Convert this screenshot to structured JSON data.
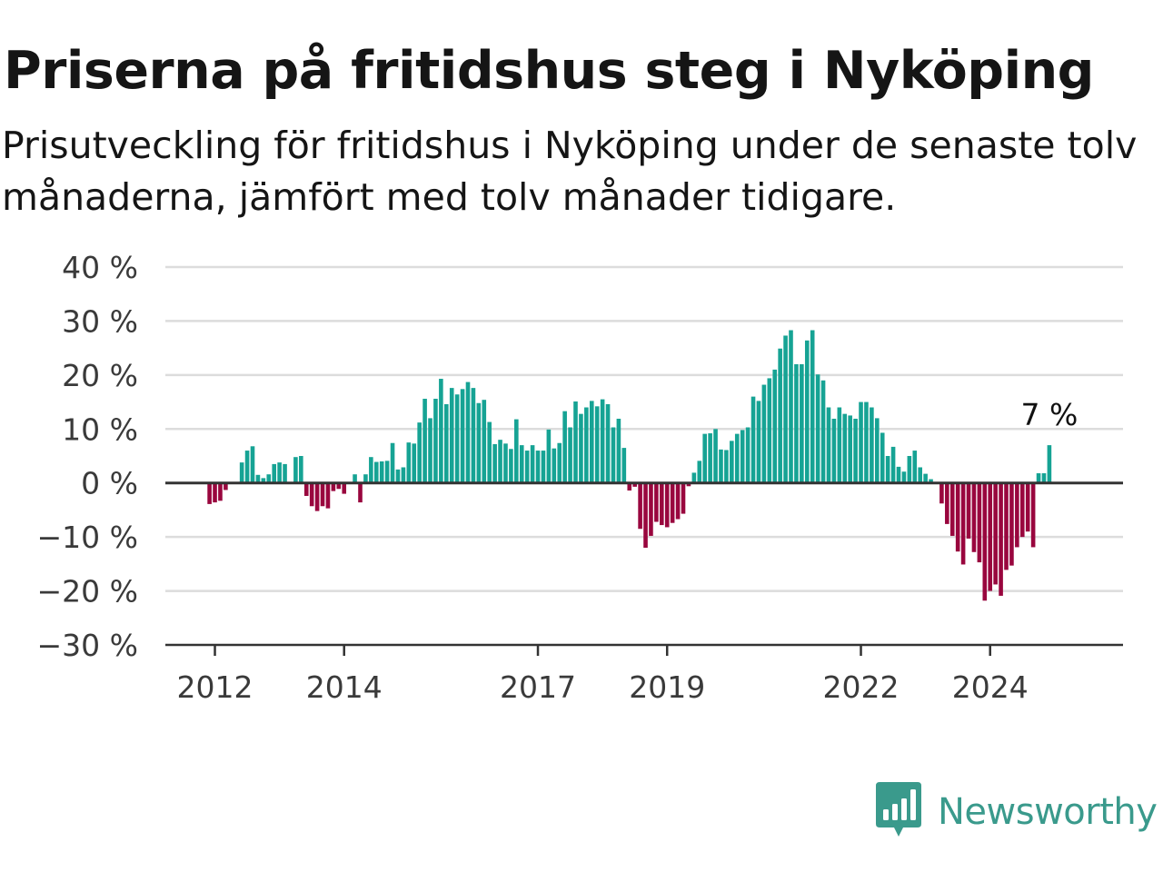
{
  "header": {
    "title": "Priserna på fritidshus steg i Nyköping",
    "subtitle": "Prisutveckling för fritidshus i Nyköping under de senaste tolv månaderna, jämfört med tolv månader tidigare."
  },
  "brand": {
    "name": "Newsworthy",
    "icon": "newsworthy-logo-icon",
    "color": "#3a9a8c"
  },
  "chart_data": {
    "type": "bar",
    "title": "Priserna på fritidshus steg i Nyköping",
    "subtitle": "Prisutveckling för fritidshus i Nyköping under de senaste tolv månaderna, jämfört med tolv månader tidigare.",
    "xlabel": "",
    "ylabel": "",
    "ylim": [
      -30,
      40
    ],
    "yticks": [
      40,
      30,
      20,
      10,
      0,
      -10,
      -20,
      -30
    ],
    "ytick_labels": [
      "40 %",
      "30 %",
      "20 %",
      "10 %",
      "0 %",
      "−10 %",
      "−20 %",
      "−30 %"
    ],
    "xticks": [
      "2012",
      "2014",
      "2017",
      "2019",
      "2022",
      "2024"
    ],
    "start_month": "2011-12",
    "grid": true,
    "positive_color": "#16a394",
    "negative_color": "#99063e",
    "annotation": {
      "text": "7 %",
      "value": 7
    },
    "values": [
      -3.9,
      -3.6,
      -3.3,
      -1.3,
      0,
      0,
      3.8,
      6.0,
      6.8,
      1.5,
      0.9,
      1.6,
      3.5,
      3.8,
      3.5,
      0,
      4.8,
      5.0,
      -2.4,
      -4.3,
      -5.2,
      -4.3,
      -4.7,
      -1.5,
      -1.1,
      -2.0,
      0,
      1.6,
      -3.6,
      1.6,
      4.8,
      3.9,
      4.0,
      4.1,
      7.4,
      2.5,
      2.9,
      7.5,
      7.3,
      11.2,
      15.6,
      12.0,
      15.6,
      19.3,
      14.6,
      17.6,
      16.4,
      17.4,
      18.7,
      17.6,
      14.8,
      15.4,
      11.3,
      7.2,
      8.0,
      7.3,
      6.3,
      11.8,
      7.0,
      6.0,
      7.0,
      6.0,
      6.0,
      9.9,
      6.4,
      7.4,
      13.3,
      10.3,
      15.1,
      12.8,
      14.0,
      15.2,
      14.2,
      15.5,
      14.6,
      10.3,
      11.9,
      6.5,
      -1.4,
      -0.7,
      -8.5,
      -12.0,
      -9.8,
      -7.2,
      -7.8,
      -8.2,
      -7.4,
      -6.7,
      -5.7,
      -0.6,
      1.9,
      4.1,
      9.1,
      9.2,
      10.0,
      6.2,
      6.1,
      7.8,
      9.1,
      9.8,
      10.3,
      16.0,
      15.2,
      18.2,
      19.4,
      21.0,
      24.9,
      27.3,
      28.3,
      22.0,
      22.0,
      26.4,
      28.3,
      20.1,
      19.0,
      14.0,
      11.9,
      14.0,
      12.8,
      12.5,
      11.9,
      15.0,
      15.0,
      14.0,
      12.0,
      9.3,
      5.0,
      6.7,
      3.0,
      2.1,
      5.0,
      6.0,
      2.9,
      1.7,
      0.7,
      0,
      -3.8,
      -7.6,
      -9.8,
      -12.7,
      -15.1,
      -10.3,
      -12.8,
      -14.7,
      -21.8,
      -20.0,
      -18.8,
      -20.9,
      -16.1,
      -15.3,
      -11.9,
      -10.0,
      -9.0,
      -11.9,
      1.8,
      1.8,
      7.0
    ]
  }
}
